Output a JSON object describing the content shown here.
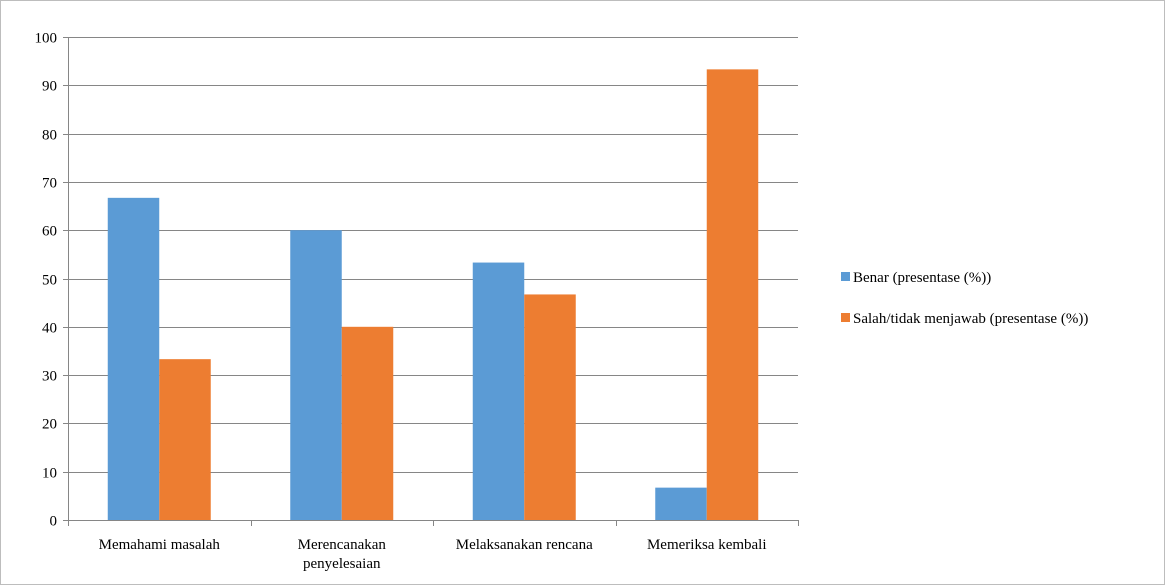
{
  "chart_data": {
    "type": "bar",
    "title": "",
    "xlabel": "",
    "ylabel": "",
    "ylim": [
      0,
      100
    ],
    "yticks": [
      0,
      10,
      20,
      30,
      40,
      50,
      60,
      70,
      80,
      90,
      100
    ],
    "grid": true,
    "legend_position": "right",
    "categories": [
      [
        "Memahami masalah"
      ],
      [
        "Merencanakan",
        "penyelesaian"
      ],
      [
        "Melaksanakan rencana"
      ],
      [
        "Memeriksa kembali"
      ]
    ],
    "series": [
      {
        "name": "Benar (presentase (%))",
        "color": "#5b9bd5",
        "values": [
          66.7,
          60,
          53.3,
          6.7
        ]
      },
      {
        "name": "Salah/tidak menjawab (presentase (%))",
        "color": "#ed7d31",
        "values": [
          33.3,
          40,
          46.7,
          93.3
        ]
      }
    ]
  }
}
